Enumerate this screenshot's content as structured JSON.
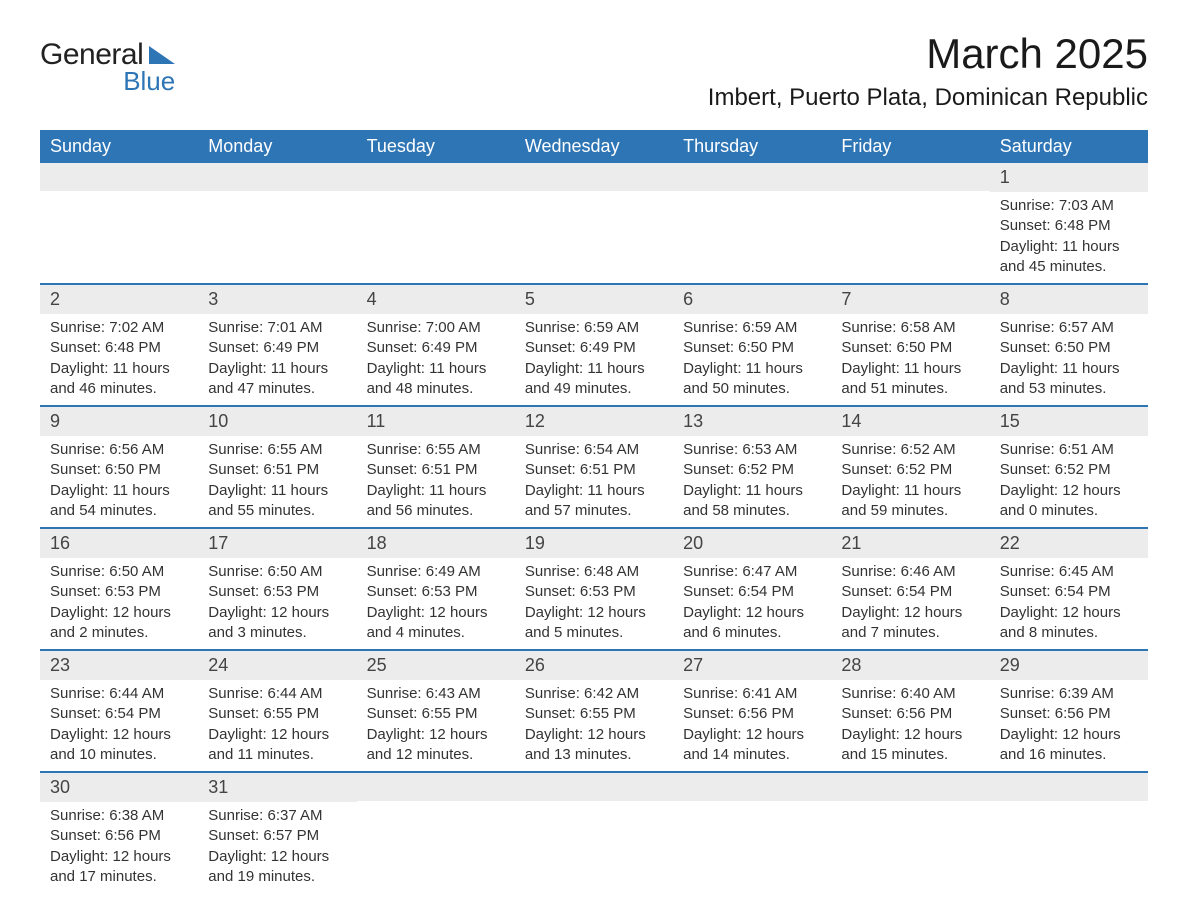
{
  "logo": {
    "general": "General",
    "blue": "Blue"
  },
  "title": "March 2025",
  "location": "Imbert, Puerto Plata, Dominican Republic",
  "colors": {
    "header_bg": "#2e75b6",
    "header_fg": "#ffffff",
    "daynum_bg": "#ececec",
    "row_divider": "#2e75b6",
    "text": "#333333"
  },
  "weekdays": [
    "Sunday",
    "Monday",
    "Tuesday",
    "Wednesday",
    "Thursday",
    "Friday",
    "Saturday"
  ],
  "weeks": [
    [
      null,
      null,
      null,
      null,
      null,
      null,
      {
        "day": "1",
        "sunrise": "Sunrise: 7:03 AM",
        "sunset": "Sunset: 6:48 PM",
        "daylight1": "Daylight: 11 hours",
        "daylight2": "and 45 minutes."
      }
    ],
    [
      {
        "day": "2",
        "sunrise": "Sunrise: 7:02 AM",
        "sunset": "Sunset: 6:48 PM",
        "daylight1": "Daylight: 11 hours",
        "daylight2": "and 46 minutes."
      },
      {
        "day": "3",
        "sunrise": "Sunrise: 7:01 AM",
        "sunset": "Sunset: 6:49 PM",
        "daylight1": "Daylight: 11 hours",
        "daylight2": "and 47 minutes."
      },
      {
        "day": "4",
        "sunrise": "Sunrise: 7:00 AM",
        "sunset": "Sunset: 6:49 PM",
        "daylight1": "Daylight: 11 hours",
        "daylight2": "and 48 minutes."
      },
      {
        "day": "5",
        "sunrise": "Sunrise: 6:59 AM",
        "sunset": "Sunset: 6:49 PM",
        "daylight1": "Daylight: 11 hours",
        "daylight2": "and 49 minutes."
      },
      {
        "day": "6",
        "sunrise": "Sunrise: 6:59 AM",
        "sunset": "Sunset: 6:50 PM",
        "daylight1": "Daylight: 11 hours",
        "daylight2": "and 50 minutes."
      },
      {
        "day": "7",
        "sunrise": "Sunrise: 6:58 AM",
        "sunset": "Sunset: 6:50 PM",
        "daylight1": "Daylight: 11 hours",
        "daylight2": "and 51 minutes."
      },
      {
        "day": "8",
        "sunrise": "Sunrise: 6:57 AM",
        "sunset": "Sunset: 6:50 PM",
        "daylight1": "Daylight: 11 hours",
        "daylight2": "and 53 minutes."
      }
    ],
    [
      {
        "day": "9",
        "sunrise": "Sunrise: 6:56 AM",
        "sunset": "Sunset: 6:50 PM",
        "daylight1": "Daylight: 11 hours",
        "daylight2": "and 54 minutes."
      },
      {
        "day": "10",
        "sunrise": "Sunrise: 6:55 AM",
        "sunset": "Sunset: 6:51 PM",
        "daylight1": "Daylight: 11 hours",
        "daylight2": "and 55 minutes."
      },
      {
        "day": "11",
        "sunrise": "Sunrise: 6:55 AM",
        "sunset": "Sunset: 6:51 PM",
        "daylight1": "Daylight: 11 hours",
        "daylight2": "and 56 minutes."
      },
      {
        "day": "12",
        "sunrise": "Sunrise: 6:54 AM",
        "sunset": "Sunset: 6:51 PM",
        "daylight1": "Daylight: 11 hours",
        "daylight2": "and 57 minutes."
      },
      {
        "day": "13",
        "sunrise": "Sunrise: 6:53 AM",
        "sunset": "Sunset: 6:52 PM",
        "daylight1": "Daylight: 11 hours",
        "daylight2": "and 58 minutes."
      },
      {
        "day": "14",
        "sunrise": "Sunrise: 6:52 AM",
        "sunset": "Sunset: 6:52 PM",
        "daylight1": "Daylight: 11 hours",
        "daylight2": "and 59 minutes."
      },
      {
        "day": "15",
        "sunrise": "Sunrise: 6:51 AM",
        "sunset": "Sunset: 6:52 PM",
        "daylight1": "Daylight: 12 hours",
        "daylight2": "and 0 minutes."
      }
    ],
    [
      {
        "day": "16",
        "sunrise": "Sunrise: 6:50 AM",
        "sunset": "Sunset: 6:53 PM",
        "daylight1": "Daylight: 12 hours",
        "daylight2": "and 2 minutes."
      },
      {
        "day": "17",
        "sunrise": "Sunrise: 6:50 AM",
        "sunset": "Sunset: 6:53 PM",
        "daylight1": "Daylight: 12 hours",
        "daylight2": "and 3 minutes."
      },
      {
        "day": "18",
        "sunrise": "Sunrise: 6:49 AM",
        "sunset": "Sunset: 6:53 PM",
        "daylight1": "Daylight: 12 hours",
        "daylight2": "and 4 minutes."
      },
      {
        "day": "19",
        "sunrise": "Sunrise: 6:48 AM",
        "sunset": "Sunset: 6:53 PM",
        "daylight1": "Daylight: 12 hours",
        "daylight2": "and 5 minutes."
      },
      {
        "day": "20",
        "sunrise": "Sunrise: 6:47 AM",
        "sunset": "Sunset: 6:54 PM",
        "daylight1": "Daylight: 12 hours",
        "daylight2": "and 6 minutes."
      },
      {
        "day": "21",
        "sunrise": "Sunrise: 6:46 AM",
        "sunset": "Sunset: 6:54 PM",
        "daylight1": "Daylight: 12 hours",
        "daylight2": "and 7 minutes."
      },
      {
        "day": "22",
        "sunrise": "Sunrise: 6:45 AM",
        "sunset": "Sunset: 6:54 PM",
        "daylight1": "Daylight: 12 hours",
        "daylight2": "and 8 minutes."
      }
    ],
    [
      {
        "day": "23",
        "sunrise": "Sunrise: 6:44 AM",
        "sunset": "Sunset: 6:54 PM",
        "daylight1": "Daylight: 12 hours",
        "daylight2": "and 10 minutes."
      },
      {
        "day": "24",
        "sunrise": "Sunrise: 6:44 AM",
        "sunset": "Sunset: 6:55 PM",
        "daylight1": "Daylight: 12 hours",
        "daylight2": "and 11 minutes."
      },
      {
        "day": "25",
        "sunrise": "Sunrise: 6:43 AM",
        "sunset": "Sunset: 6:55 PM",
        "daylight1": "Daylight: 12 hours",
        "daylight2": "and 12 minutes."
      },
      {
        "day": "26",
        "sunrise": "Sunrise: 6:42 AM",
        "sunset": "Sunset: 6:55 PM",
        "daylight1": "Daylight: 12 hours",
        "daylight2": "and 13 minutes."
      },
      {
        "day": "27",
        "sunrise": "Sunrise: 6:41 AM",
        "sunset": "Sunset: 6:56 PM",
        "daylight1": "Daylight: 12 hours",
        "daylight2": "and 14 minutes."
      },
      {
        "day": "28",
        "sunrise": "Sunrise: 6:40 AM",
        "sunset": "Sunset: 6:56 PM",
        "daylight1": "Daylight: 12 hours",
        "daylight2": "and 15 minutes."
      },
      {
        "day": "29",
        "sunrise": "Sunrise: 6:39 AM",
        "sunset": "Sunset: 6:56 PM",
        "daylight1": "Daylight: 12 hours",
        "daylight2": "and 16 minutes."
      }
    ],
    [
      {
        "day": "30",
        "sunrise": "Sunrise: 6:38 AM",
        "sunset": "Sunset: 6:56 PM",
        "daylight1": "Daylight: 12 hours",
        "daylight2": "and 17 minutes."
      },
      {
        "day": "31",
        "sunrise": "Sunrise: 6:37 AM",
        "sunset": "Sunset: 6:57 PM",
        "daylight1": "Daylight: 12 hours",
        "daylight2": "and 19 minutes."
      },
      null,
      null,
      null,
      null,
      null
    ]
  ]
}
